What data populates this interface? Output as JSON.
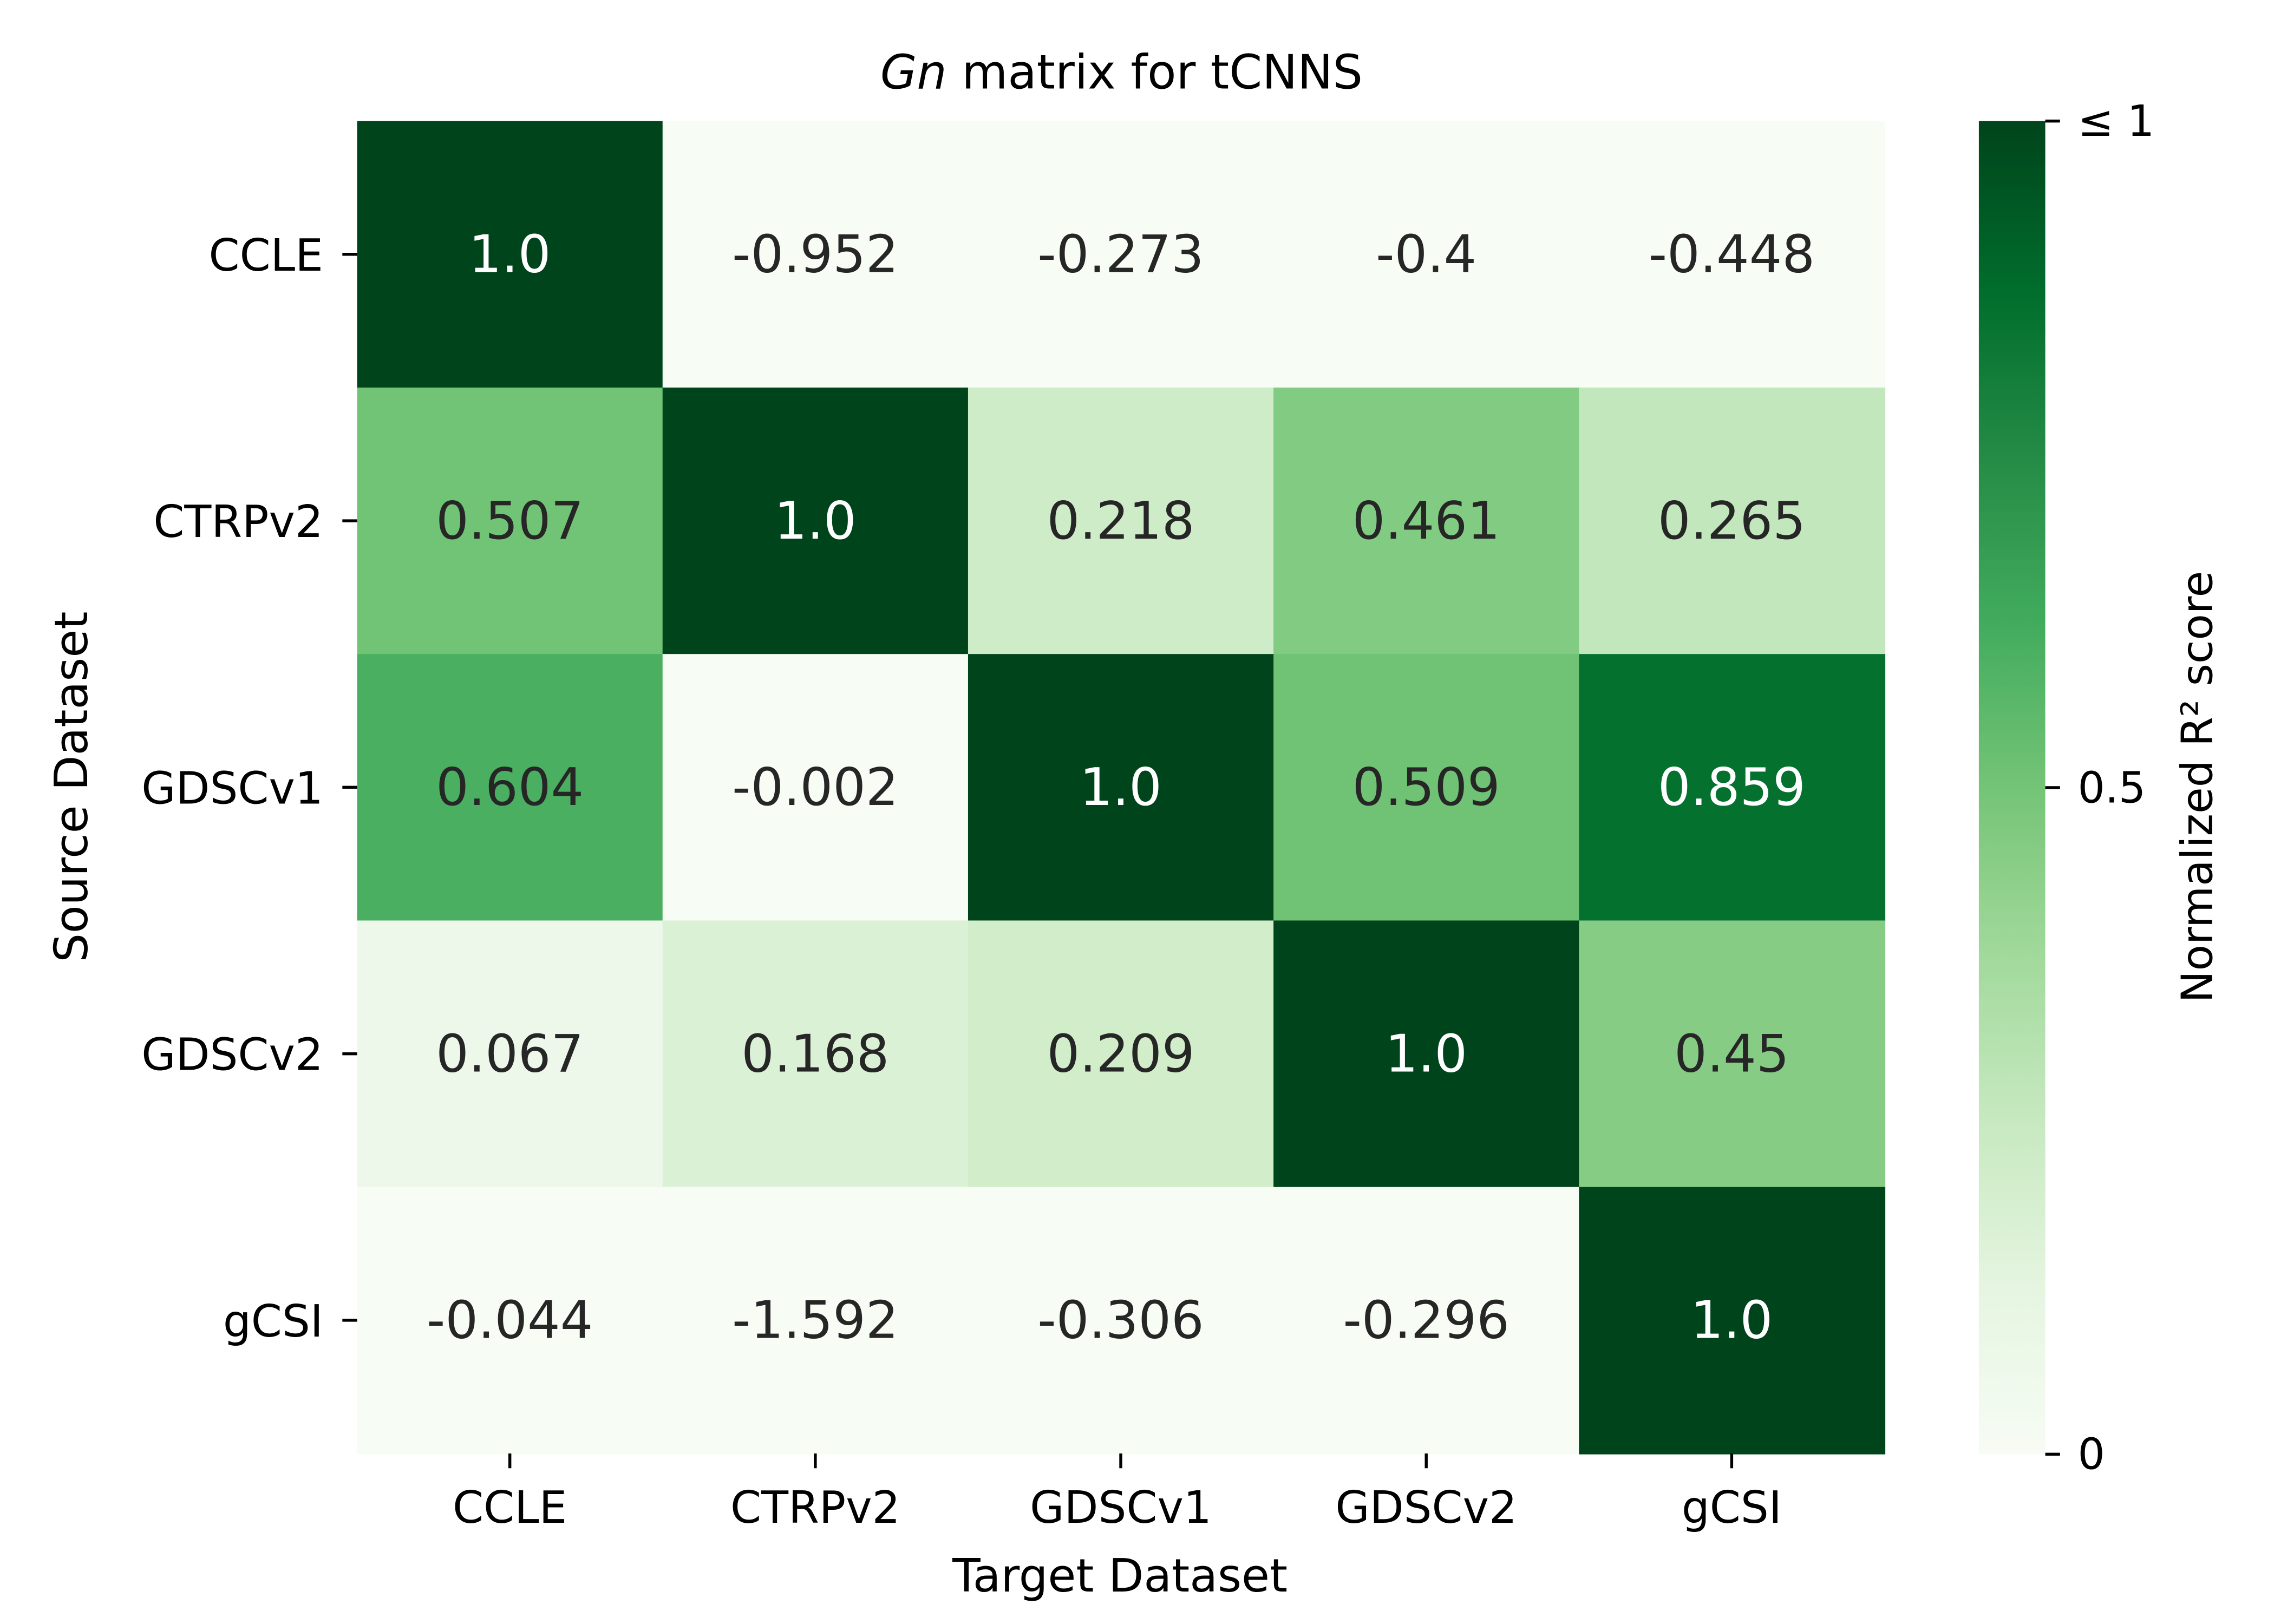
{
  "chart_data": {
    "type": "heatmap",
    "title": {
      "italic": "Gn",
      "rest": " matrix for tCNNS"
    },
    "xlabel": "Target Dataset",
    "ylabel": "Source Dataset",
    "x_categories": [
      "CCLE",
      "CTRPv2",
      "GDSCv1",
      "GDSCv2",
      "gCSI"
    ],
    "y_categories": [
      "CCLE",
      "CTRPv2",
      "GDSCv1",
      "GDSCv2",
      "gCSI"
    ],
    "values": [
      [
        1.0,
        -0.952,
        -0.273,
        -0.4,
        -0.448
      ],
      [
        0.507,
        1.0,
        0.218,
        0.461,
        0.265
      ],
      [
        0.604,
        -0.002,
        1.0,
        0.509,
        0.859
      ],
      [
        0.067,
        0.168,
        0.209,
        1.0,
        0.45
      ],
      [
        -0.044,
        -1.592,
        -0.306,
        -0.296,
        1.0
      ]
    ],
    "labels": [
      [
        "1.0",
        "-0.952",
        "-0.273",
        "-0.4",
        "-0.448"
      ],
      [
        "0.507",
        "1.0",
        "0.218",
        "0.461",
        "0.265"
      ],
      [
        "0.604",
        "-0.002",
        "1.0",
        "0.509",
        "0.859"
      ],
      [
        "0.067",
        "0.168",
        "0.209",
        "1.0",
        "0.45"
      ],
      [
        "-0.044",
        "-1.592",
        "-0.306",
        "-0.296",
        "1.0"
      ]
    ],
    "colorbar": {
      "label": "Normalized R² score",
      "range": [
        0,
        1
      ],
      "ticks": [
        {
          "value": 1,
          "label": "≤ 1"
        },
        {
          "value": 0.5,
          "label": "0.5"
        },
        {
          "value": 0,
          "label": "0"
        }
      ],
      "colormap": "Greens",
      "stops": [
        "#f7fcf5",
        "#e5f5e0",
        "#c7e9c0",
        "#a1d99b",
        "#74c476",
        "#41ab5d",
        "#238b45",
        "#006d2c",
        "#00441b"
      ]
    },
    "annotation_colors": {
      "dark": "#262626",
      "light": "#ffffff"
    }
  }
}
